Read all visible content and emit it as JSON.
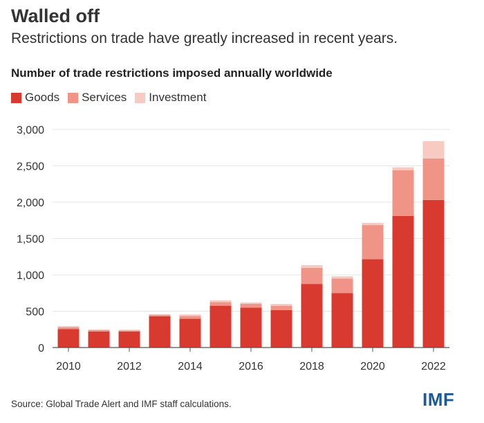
{
  "header": {
    "title": "Walled off",
    "subtitle": "Restrictions on trade have greatly increased in recent years."
  },
  "footer": {
    "source": "Source: Global Trade Alert and IMF staff calculations.",
    "logo": "IMF"
  },
  "colors": {
    "goods": "#d93a2f",
    "services": "#ef9487",
    "investment": "#f8cbc2",
    "grid": "#e6e6e6",
    "axis": "#555555",
    "logo": "#1a5a99"
  },
  "chart_data": {
    "type": "bar",
    "stacked": true,
    "title": "Number of trade restrictions imposed annually worldwide",
    "categories": [
      "2010",
      "2011",
      "2012",
      "2013",
      "2014",
      "2015",
      "2016",
      "2017",
      "2018",
      "2019",
      "2020",
      "2021",
      "2022"
    ],
    "x_tick_labels": [
      "2010",
      "2012",
      "2014",
      "2016",
      "2018",
      "2020",
      "2022"
    ],
    "series": [
      {
        "name": "Goods",
        "values": [
          255,
          220,
          220,
          430,
          395,
          575,
          550,
          515,
          875,
          750,
          1215,
          1810,
          2030
        ]
      },
      {
        "name": "Services",
        "values": [
          25,
          20,
          15,
          20,
          40,
          50,
          50,
          60,
          220,
          200,
          470,
          630,
          570
        ]
      },
      {
        "name": "Investment",
        "values": [
          15,
          10,
          10,
          10,
          20,
          25,
          20,
          25,
          40,
          30,
          30,
          40,
          240
        ]
      }
    ],
    "ylim": [
      0,
      3000
    ],
    "y_ticks": [
      0,
      500,
      1000,
      1500,
      2000,
      2500,
      3000
    ],
    "y_tick_labels": [
      "0",
      "500",
      "1,000",
      "1,500",
      "2,000",
      "2,500",
      "3,000"
    ],
    "xlabel": "",
    "ylabel": "",
    "grid": true,
    "legend_position": "top-left"
  }
}
